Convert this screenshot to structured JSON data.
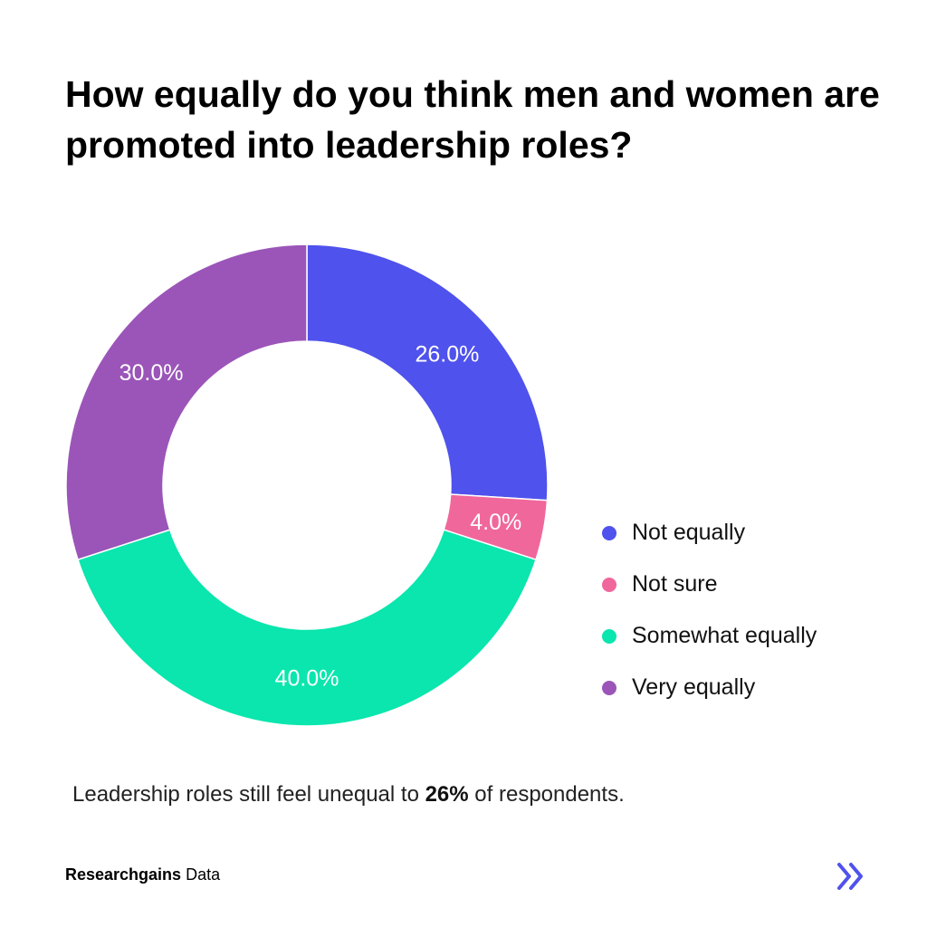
{
  "chart_data": {
    "type": "pie",
    "style": "donut",
    "title": "How equally do you think men and women are promoted into leadership roles?",
    "categories": [
      "Not equally",
      "Not sure",
      "Somewhat equally",
      "Very equally"
    ],
    "values": [
      26.0,
      4.0,
      40.0,
      30.0
    ],
    "data_labels": [
      "26.0%",
      "4.0%",
      "40.0%",
      "30.0%"
    ],
    "colors": [
      "#4F52EC",
      "#F0679B",
      "#0AE6AD",
      "#9B55B8"
    ],
    "legend_position": "right"
  },
  "caption": {
    "prefix": "Leadership roles still feel unequal to ",
    "highlight": "26%",
    "suffix": " of respondents."
  },
  "footer": {
    "brand_bold": "Researchgains",
    "brand_rest": " Data",
    "next_icon": "double-chevron-right-icon",
    "accent": "#4F52EC"
  }
}
